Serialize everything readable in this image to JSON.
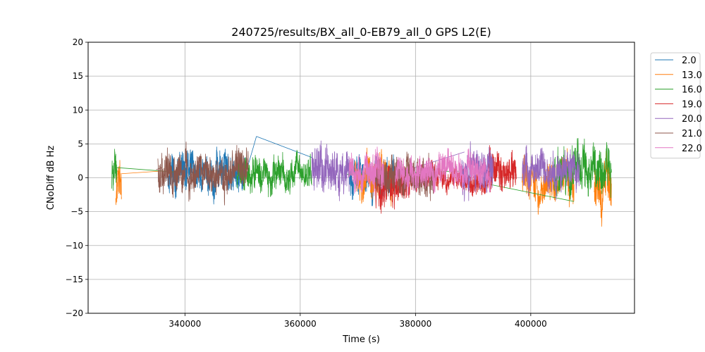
{
  "chart_data": {
    "type": "line",
    "title": "240725/results/BX_all_0-EB79_all_0 GPS L2(E)",
    "xlabel": "Time (s)",
    "ylabel": "CNoDiff dB Hz",
    "xlim": [
      323200,
      418000
    ],
    "ylim": [
      -20,
      20
    ],
    "xticks": [
      340000,
      360000,
      380000,
      400000
    ],
    "xtick_labels": [
      "340000",
      "360000",
      "380000",
      "400000"
    ],
    "yticks": [
      -20,
      -15,
      -10,
      -5,
      0,
      5,
      10,
      15,
      20
    ],
    "ytick_labels": [
      "−20",
      "−15",
      "−10",
      "−5",
      "0",
      "5",
      "10",
      "15",
      "20"
    ],
    "grid": true,
    "legend_position": "outside-top-right",
    "series": [
      {
        "name": "2.0",
        "color": "#1f77b4",
        "segments": [
          [
            336800,
            350500,
            0.8,
            3.0
          ],
          [
            368500,
            376500,
            -0.4,
            3.0
          ]
        ],
        "links": [
          [
            350500,
            0.5,
            352400,
            6.1
          ],
          [
            352400,
            6.1,
            362000,
            3.0
          ]
        ]
      },
      {
        "name": "13.0",
        "color": "#ff7f0e",
        "segments": [
          [
            328000,
            329000,
            -0.5,
            3.5
          ],
          [
            369500,
            376000,
            0.2,
            3.0
          ],
          [
            398500,
            407500,
            -0.8,
            3.0
          ],
          [
            411000,
            414000,
            -1.0,
            3.5
          ]
        ],
        "links": [
          [
            329000,
            0.6,
            336000,
            1.0
          ]
        ]
      },
      {
        "name": "16.0",
        "color": "#2ca02c",
        "segments": [
          [
            327300,
            328200,
            1.0,
            3.0
          ],
          [
            349000,
            362000,
            0.6,
            2.5
          ],
          [
            404000,
            414000,
            1.5,
            3.5
          ]
        ],
        "links": [
          [
            328200,
            1.5,
            339000,
            0.8
          ],
          [
            368000,
            0.5,
            389000,
            1.0
          ],
          [
            393000,
            -1.0,
            407500,
            -3.5
          ]
        ]
      },
      {
        "name": "19.0",
        "color": "#d62728",
        "segments": [
          [
            373000,
            379500,
            -1.0,
            3.5
          ],
          [
            380000,
            393000,
            0.0,
            2.0
          ],
          [
            392500,
            397500,
            1.5,
            3.0
          ]
        ],
        "links": []
      },
      {
        "name": "20.0",
        "color": "#9467bd",
        "segments": [
          [
            362000,
            368500,
            1.0,
            3.5
          ],
          [
            388000,
            393500,
            1.0,
            3.5
          ],
          [
            398500,
            408500,
            1.0,
            3.0
          ]
        ],
        "links": [
          [
            378000,
            1.0,
            388500,
            3.8
          ]
        ]
      },
      {
        "name": "21.0",
        "color": "#8c564b",
        "segments": [
          [
            335300,
            351000,
            0.8,
            3.0
          ],
          [
            373000,
            383500,
            0.0,
            3.0
          ]
        ],
        "links": [
          [
            335000,
            1.2,
            336000,
            1.5
          ]
        ]
      },
      {
        "name": "22.0",
        "color": "#e377c2",
        "segments": [
          [
            368500,
            374500,
            0.8,
            3.0
          ],
          [
            376500,
            393000,
            0.8,
            2.5
          ]
        ],
        "links": []
      }
    ]
  }
}
